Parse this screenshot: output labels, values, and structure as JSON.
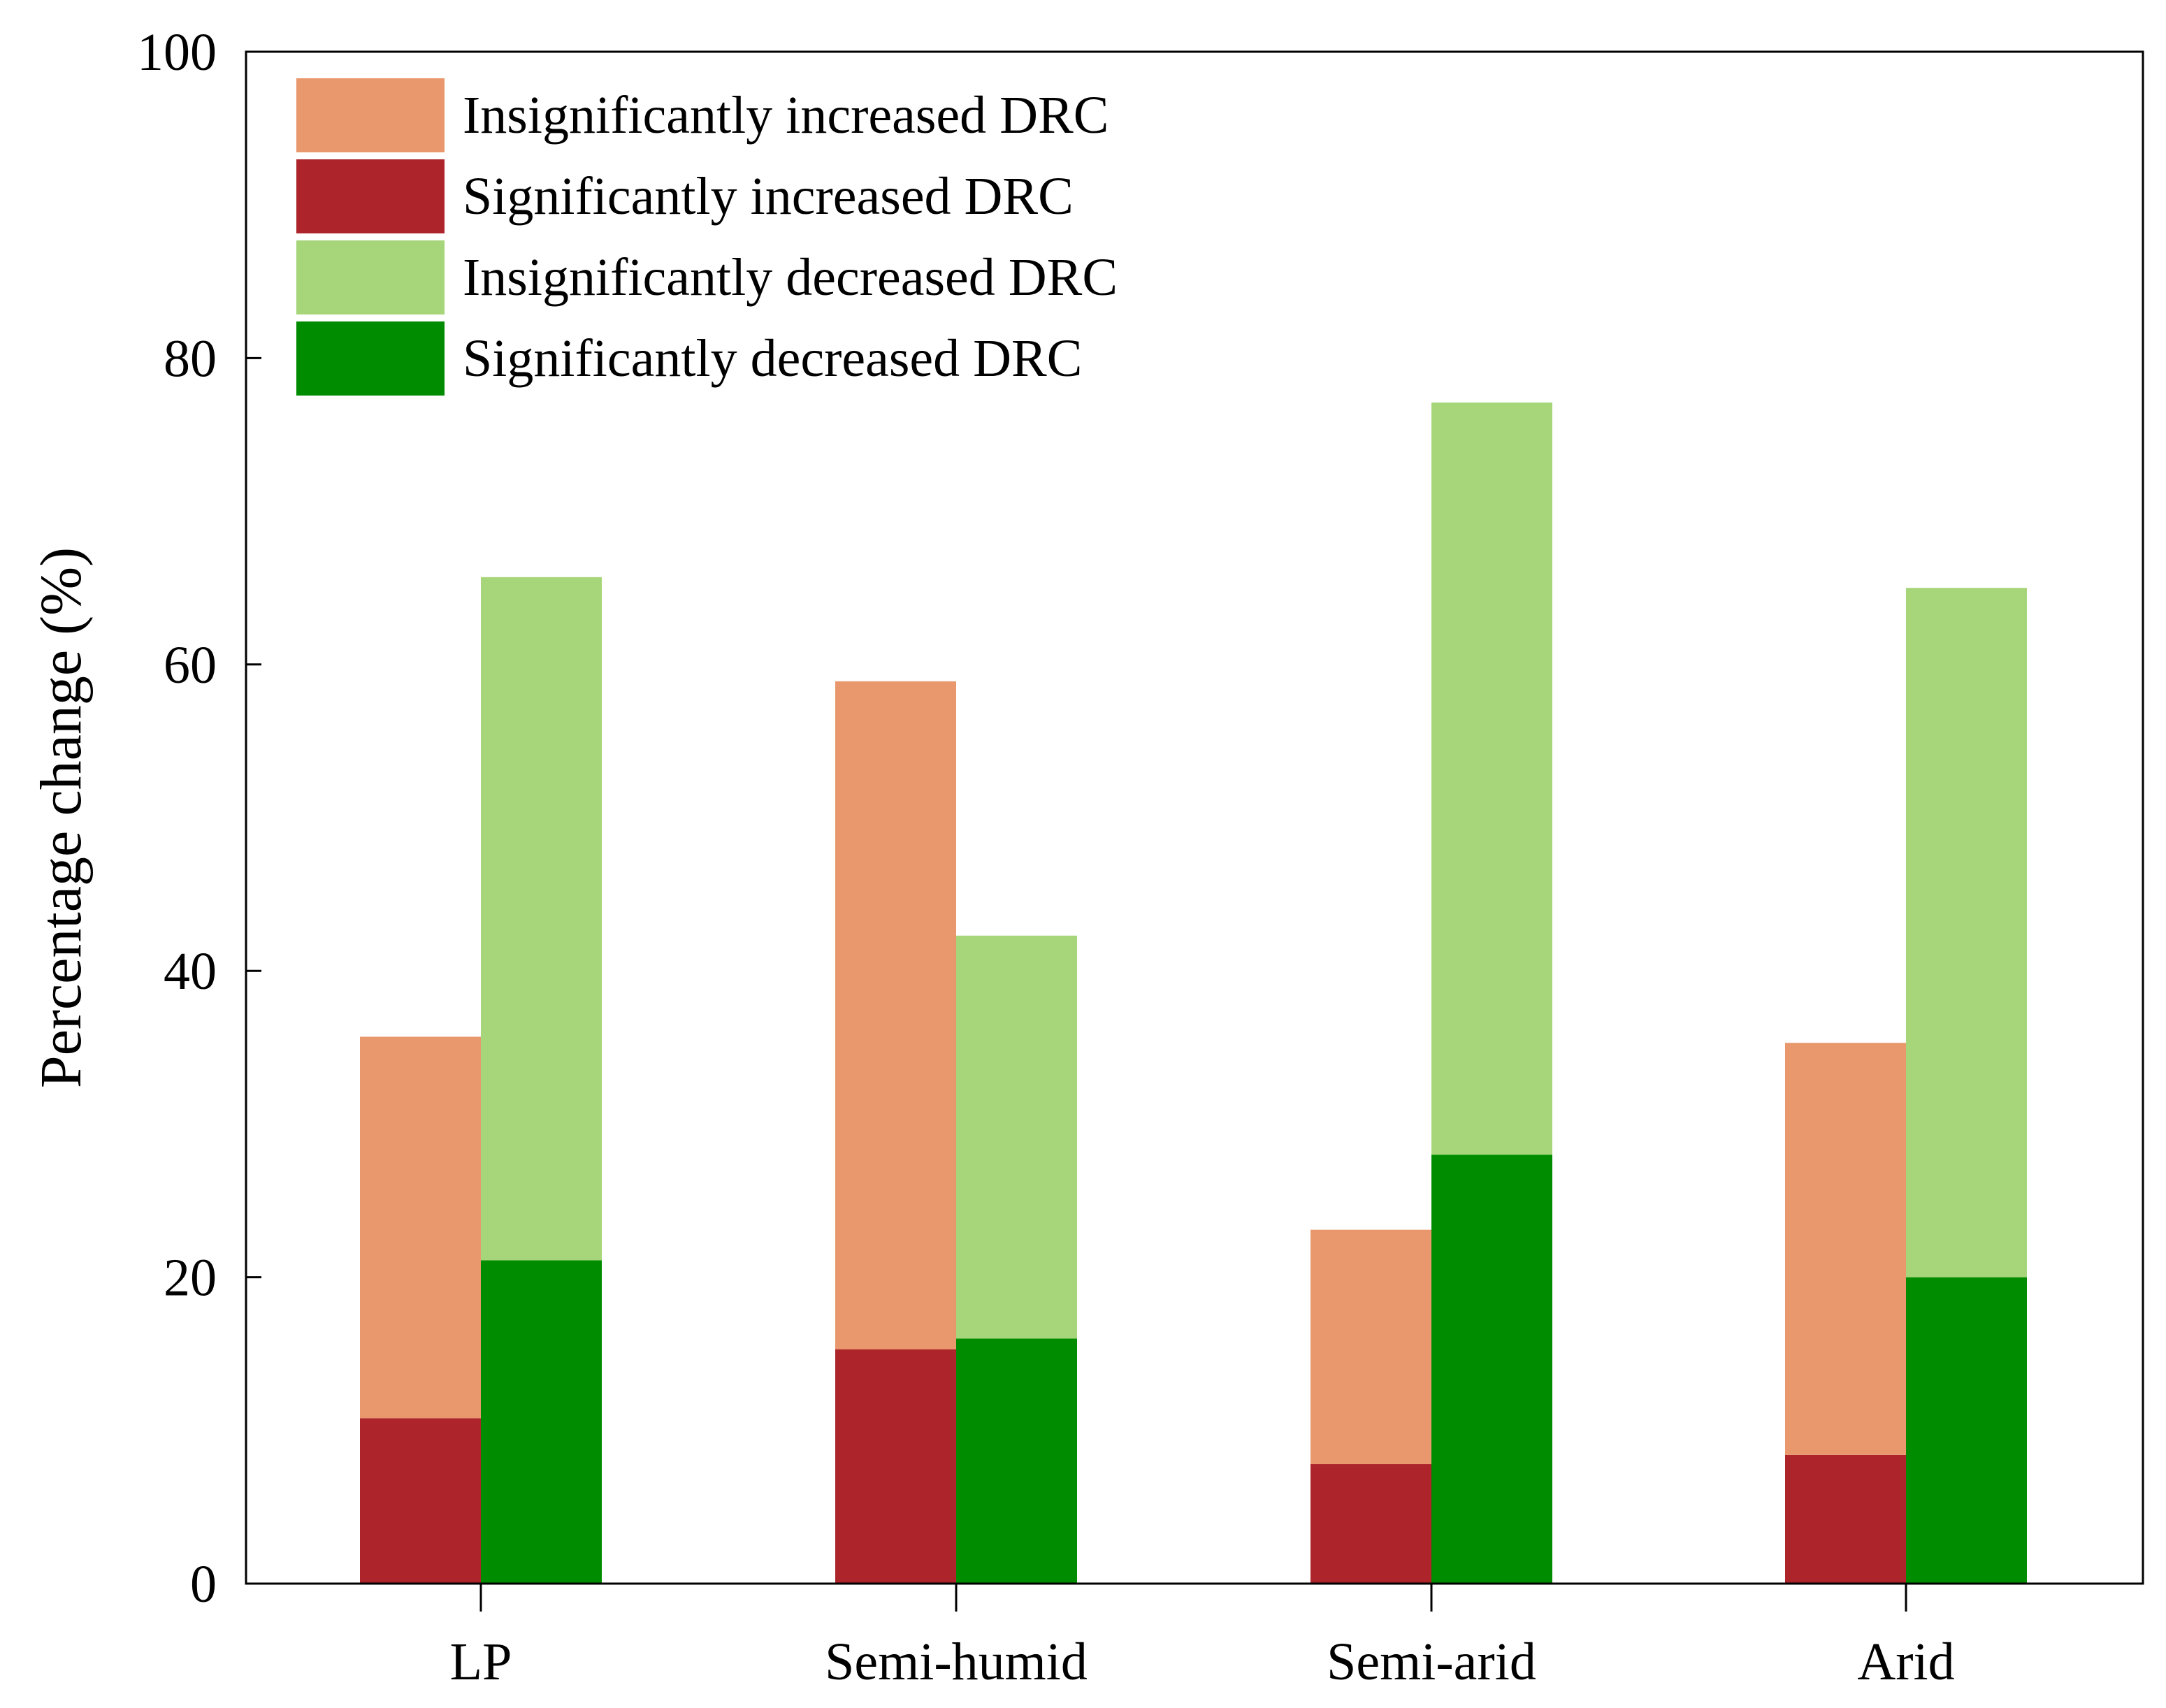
{
  "chart_data": {
    "type": "bar",
    "title": "",
    "xlabel": "",
    "ylabel": "Percentage change (%)",
    "ylim": [
      0,
      100
    ],
    "yticks": [
      0,
      20,
      40,
      60,
      80,
      100
    ],
    "grid": false,
    "legend_position": "top-left",
    "categories": [
      "LP",
      "Semi-humid",
      "Semi-arid",
      "Arid"
    ],
    "series": [
      {
        "name": "Significantly increased DRC",
        "group": "increased",
        "color": "#ad252a",
        "values": [
          10.8,
          15.3,
          7.8,
          8.4
        ]
      },
      {
        "name": "Insignificantly increased DRC",
        "group": "increased",
        "color": "#e8986c",
        "values": [
          24.9,
          43.6,
          15.3,
          26.9
        ]
      },
      {
        "name": "Significantly decreased DRC",
        "group": "decreased",
        "color": "#008c00",
        "values": [
          21.1,
          16.0,
          28.0,
          20.0
        ]
      },
      {
        "name": "Insignificantly decreased DRC",
        "group": "decreased",
        "color": "#a6d679",
        "values": [
          44.6,
          26.3,
          49.1,
          45.0
        ]
      }
    ],
    "legend_order": [
      "Insignificantly increased DRC",
      "Significantly increased DRC",
      "Insignificantly decreased DRC",
      "Significantly decreased DRC"
    ]
  }
}
